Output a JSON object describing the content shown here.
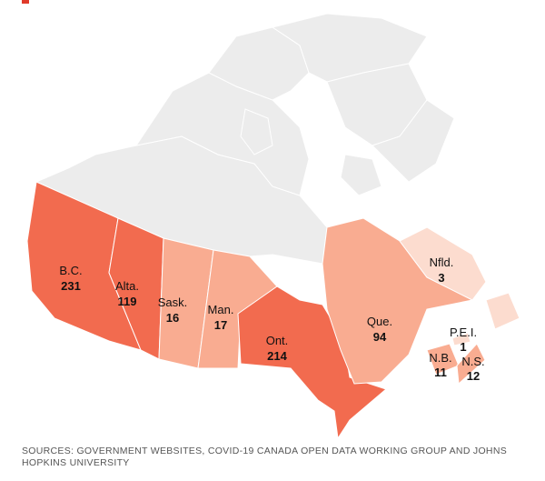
{
  "map": {
    "regions": [
      {
        "name": "B.C.",
        "value": 231,
        "color": "#f26b4f"
      },
      {
        "name": "Alta.",
        "value": 119,
        "color": "#f26b4f"
      },
      {
        "name": "Sask.",
        "value": 16,
        "color": "#f9ac91"
      },
      {
        "name": "Man.",
        "value": 17,
        "color": "#f9ac91"
      },
      {
        "name": "Ont.",
        "value": 214,
        "color": "#f26b4f"
      },
      {
        "name": "Que.",
        "value": 94,
        "color": "#f9ac91"
      },
      {
        "name": "Nfld.",
        "value": 3,
        "color": "#fcdccf"
      },
      {
        "name": "P.E.I.",
        "value": 1,
        "color": "#fcdccf"
      },
      {
        "name": "N.B.",
        "value": 11,
        "color": "#f9ac91"
      },
      {
        "name": "N.S.",
        "value": 12,
        "color": "#f9ac91"
      }
    ],
    "source": "SOURCES: GOVERNMENT WEBSITES, COVID-19 CANADA OPEN DATA WORKING GROUP AND JOHNS HOPKINS UNIVERSITY"
  }
}
